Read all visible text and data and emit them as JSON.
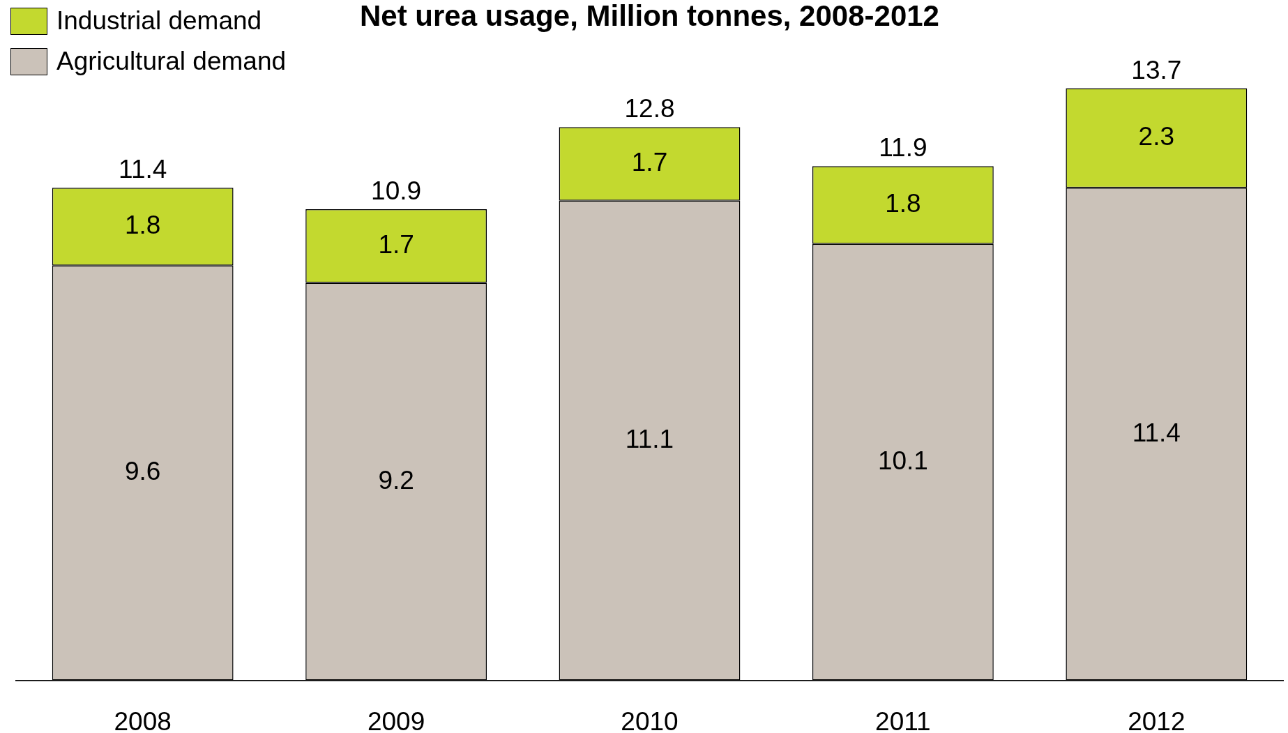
{
  "chart_data": {
    "type": "bar",
    "title": "Net urea usage, Million tonnes, 2008-2012",
    "categories": [
      "2008",
      "2009",
      "2010",
      "2011",
      "2012"
    ],
    "series": [
      {
        "name": "Agricultural demand",
        "color": "#cbc2b9",
        "values": [
          9.6,
          9.2,
          11.1,
          10.1,
          11.4
        ]
      },
      {
        "name": "Industrial demand",
        "color": "#c3d92f",
        "values": [
          1.8,
          1.7,
          1.7,
          1.8,
          2.3
        ]
      }
    ],
    "stacked": true,
    "data_labels": true,
    "totals": [
      "11.4",
      "10.9",
      "12.8",
      "11.9",
      "13.7"
    ],
    "legend": "top left",
    "grid": false
  }
}
